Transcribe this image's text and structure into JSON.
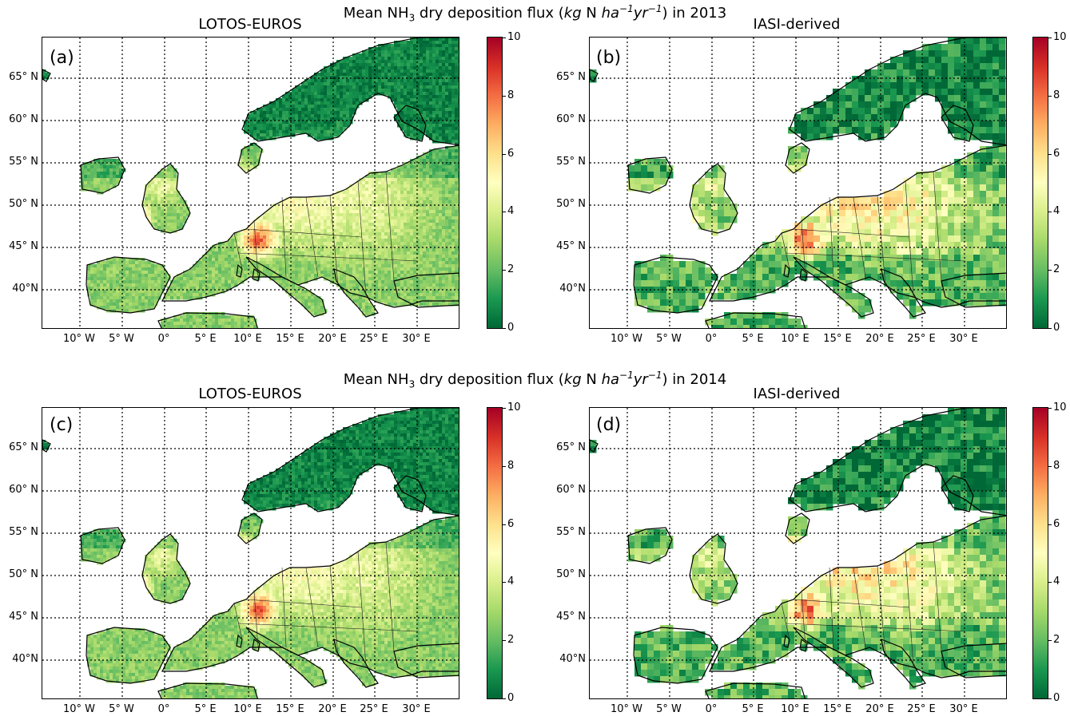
{
  "figure": {
    "row_titles": [
      {
        "prefix": "Mean NH",
        "sub": "3",
        "mid": " dry  deposition flux (",
        "kg": "kg",
        "n": " N ",
        "ha": "ha",
        "ha_sup": "−1",
        "yr": "yr",
        "yr_sup": "−1",
        "suffix": ") in 2013"
      },
      {
        "prefix": "Mean NH",
        "sub": "3",
        "mid": " dry  deposition flux (",
        "kg": "kg",
        "n": " N ",
        "ha": "ha",
        "ha_sup": "−1",
        "yr": "yr",
        "yr_sup": "−1",
        "suffix": ") in 2014"
      }
    ],
    "panels": [
      {
        "label": "(a)",
        "title": "LOTOS-EUROS"
      },
      {
        "label": "(b)",
        "title": "IASI-derived"
      },
      {
        "label": "(c)",
        "title": "LOTOS-EUROS"
      },
      {
        "label": "(d)",
        "title": "IASI-derived"
      }
    ],
    "lat_labels": [
      "65°  N",
      "60°  N",
      "55°  N",
      "50°  N",
      "45°  N",
      "40°N"
    ],
    "lon_labels": [
      "10° W",
      "5° W",
      "0°",
      "5° E",
      "10° E",
      "15° E",
      "20° E",
      "25° E",
      "30° E"
    ],
    "colorbar": {
      "ticks": [
        "0",
        "2",
        "4",
        "6",
        "8",
        "10"
      ],
      "colors": [
        "#006837",
        "#1a9850",
        "#66bd63",
        "#a6d96a",
        "#d9ef8b",
        "#ffffbf",
        "#fee08b",
        "#fdae61",
        "#f46d43",
        "#d73027",
        "#a50026"
      ],
      "colormap": "RdYlGn_r"
    },
    "colors": {
      "ocean": "#ffffff",
      "land_low": "#1e7d45",
      "land_mid": "#8cc960",
      "hotspot": "#d73027"
    }
  }
}
